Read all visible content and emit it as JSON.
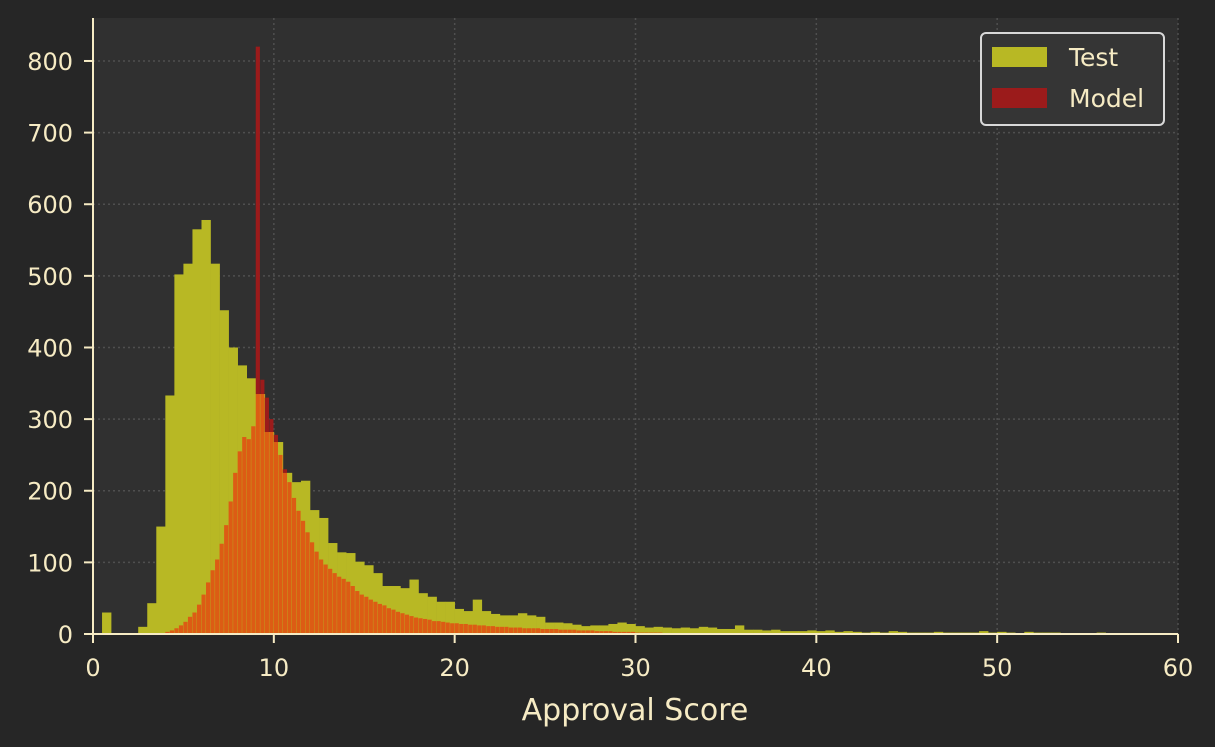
{
  "chart_data": {
    "type": "bar",
    "subtype": "overlaid-histogram",
    "xlabel": "Approval Score",
    "ylabel": "",
    "xlim": [
      0,
      60
    ],
    "ylim": [
      0,
      860
    ],
    "xticks": [
      0,
      10,
      20,
      30,
      40,
      50,
      60
    ],
    "yticks": [
      0,
      100,
      200,
      300,
      400,
      500,
      600,
      700,
      800
    ],
    "grid": true,
    "legend_position": "top-right",
    "colors": {
      "background": "#262626",
      "plot_background": "#303030",
      "axis": "#f6ebc4",
      "grid": "#4f4f4f",
      "test": "#b8b824",
      "model": "#9b1b1b",
      "overlap": "#dc5c14"
    },
    "series": [
      {
        "name": "Test",
        "color": "#b8b824",
        "bin_width": 0.5,
        "x_start": 0.5,
        "values": [
          30,
          0,
          0,
          0,
          10,
          43,
          150,
          333,
          502,
          517,
          565,
          578,
          517,
          452,
          400,
          375,
          357,
          335,
          282,
          268,
          225,
          212,
          214,
          173,
          162,
          127,
          114,
          113,
          101,
          96,
          85,
          67,
          67,
          64,
          76,
          57,
          52,
          45,
          45,
          35,
          32,
          48,
          32,
          28,
          26,
          26,
          29,
          26,
          24,
          16,
          16,
          15,
          13,
          11,
          12,
          12,
          14,
          16,
          14,
          11,
          9,
          10,
          9,
          8,
          9,
          8,
          10,
          9,
          7,
          7,
          12,
          6,
          6,
          5,
          6,
          4,
          4,
          4,
          5,
          4,
          5,
          3,
          4,
          3,
          2,
          3,
          2,
          4,
          3,
          2,
          2,
          2,
          3,
          2,
          2,
          2,
          2,
          4,
          2,
          3,
          2,
          1,
          3,
          2,
          2,
          2,
          1,
          1,
          1,
          1,
          2,
          1,
          1,
          1,
          1
        ]
      },
      {
        "name": "Model",
        "color": "#9b1b1b",
        "bin_width": 0.25,
        "x_start": 4.0,
        "values": [
          3,
          5,
          8,
          12,
          17,
          24,
          30,
          41,
          55,
          72,
          89,
          104,
          126,
          152,
          185,
          225,
          255,
          275,
          272,
          290,
          820,
          355,
          330,
          300,
          278,
          250,
          230,
          212,
          190,
          172,
          158,
          142,
          128,
          115,
          104,
          97,
          91,
          85,
          80,
          77,
          73,
          67,
          60,
          55,
          52,
          48,
          45,
          42,
          40,
          36,
          34,
          31,
          29,
          27,
          25,
          23,
          22,
          21,
          20,
          18,
          18,
          17,
          16,
          15,
          15,
          14,
          14,
          13,
          13,
          12,
          12,
          11,
          11,
          10,
          10,
          10,
          9,
          9,
          9,
          8,
          8,
          8,
          8,
          7,
          7,
          7,
          7,
          6,
          6,
          6,
          6,
          5,
          5,
          5,
          5,
          4,
          4,
          4,
          4,
          3,
          3,
          3,
          3,
          3,
          2,
          2,
          2,
          2,
          2,
          2,
          1,
          1,
          1,
          1,
          1,
          1,
          1,
          1,
          1,
          1
        ]
      }
    ]
  }
}
